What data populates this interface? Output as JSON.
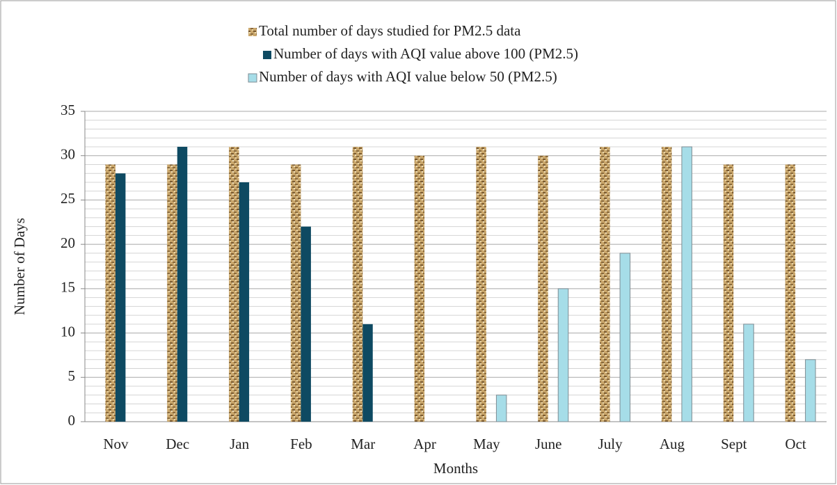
{
  "chart_data": {
    "type": "bar",
    "y_label": "Number of Days",
    "x_label": "Months",
    "categories": [
      "Nov",
      "Dec",
      "Jan",
      "Feb",
      "Mar",
      "Apr",
      "May",
      "June",
      "July",
      "Aug",
      "Sept",
      "Oct"
    ],
    "series": [
      {
        "name": "Total number of days studied for PM2.5 data",
        "color": "#c9a66b",
        "values": [
          29,
          29,
          31,
          29,
          31,
          30,
          31,
          30,
          31,
          31,
          29,
          29
        ]
      },
      {
        "name": "Number of days with AQI value above 100 (PM2.5)",
        "color": "#0e4a62",
        "values": [
          28,
          31,
          27,
          22,
          11,
          0,
          0,
          0,
          0,
          0,
          0,
          0
        ]
      },
      {
        "name": "Number of days with AQI value below 50 (PM2.5)",
        "color": "#a6dde8",
        "values": [
          0,
          0,
          0,
          0,
          0,
          0,
          3,
          15,
          19,
          31,
          11,
          7
        ]
      }
    ],
    "ylim": [
      0,
      35
    ],
    "yticks": [
      0,
      5,
      10,
      15,
      20,
      25,
      30,
      35
    ],
    "yminorticks": [
      1,
      2,
      3,
      4,
      6,
      7,
      8,
      9,
      11,
      12,
      13,
      14,
      16,
      17,
      18,
      19,
      21,
      22,
      23,
      24,
      26,
      27,
      28,
      29,
      31,
      32,
      33,
      34
    ],
    "grid": true
  }
}
